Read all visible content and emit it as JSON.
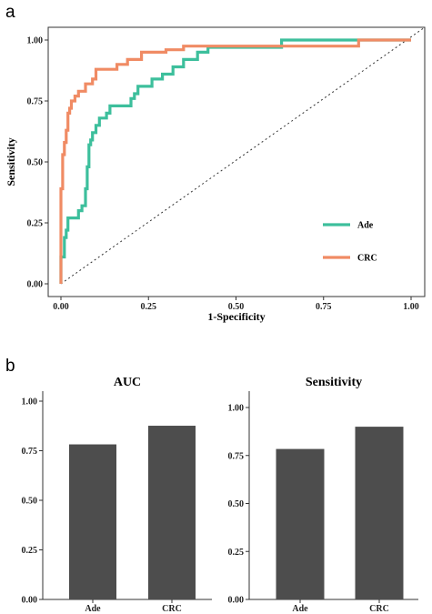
{
  "panels": {
    "a": "a",
    "b": "b"
  },
  "chart_data": [
    {
      "type": "line",
      "xlabel": "1-Specificity",
      "ylabel": "Sensitivity",
      "xlim": [
        0,
        1
      ],
      "ylim": [
        0,
        1
      ],
      "xticks": [
        "0.00",
        "0.25",
        "0.50",
        "0.75",
        "1.00"
      ],
      "yticks": [
        "0.00",
        "0.25",
        "0.50",
        "0.75",
        "1.00"
      ],
      "legend_position": "bottom-right",
      "series": [
        {
          "name": "Ade",
          "color": "#3dbf9c",
          "x": [
            0,
            0,
            0.01,
            0.01,
            0.015,
            0.015,
            0.02,
            0.02,
            0.05,
            0.05,
            0.06,
            0.06,
            0.07,
            0.07,
            0.075,
            0.075,
            0.08,
            0.08,
            0.085,
            0.085,
            0.09,
            0.09,
            0.1,
            0.1,
            0.11,
            0.11,
            0.13,
            0.13,
            0.14,
            0.14,
            0.17,
            0.17,
            0.2,
            0.2,
            0.21,
            0.21,
            0.22,
            0.22,
            0.26,
            0.26,
            0.29,
            0.29,
            0.32,
            0.32,
            0.35,
            0.35,
            0.39,
            0.39,
            0.42,
            0.42,
            0.63,
            0.63,
            1.0
          ],
          "y": [
            0,
            0.11,
            0.11,
            0.19,
            0.19,
            0.22,
            0.22,
            0.27,
            0.27,
            0.3,
            0.3,
            0.32,
            0.32,
            0.39,
            0.39,
            0.48,
            0.48,
            0.57,
            0.57,
            0.59,
            0.59,
            0.62,
            0.62,
            0.65,
            0.65,
            0.68,
            0.68,
            0.7,
            0.7,
            0.73,
            0.73,
            0.73,
            0.73,
            0.76,
            0.76,
            0.78,
            0.78,
            0.81,
            0.81,
            0.84,
            0.84,
            0.86,
            0.86,
            0.89,
            0.89,
            0.92,
            0.92,
            0.95,
            0.95,
            0.97,
            0.97,
            1.0,
            1.0
          ]
        },
        {
          "name": "CRC",
          "color": "#f08b64",
          "x": [
            0,
            0,
            0.005,
            0.005,
            0.01,
            0.01,
            0.015,
            0.015,
            0.02,
            0.02,
            0.025,
            0.025,
            0.03,
            0.03,
            0.04,
            0.04,
            0.05,
            0.05,
            0.07,
            0.07,
            0.09,
            0.09,
            0.1,
            0.1,
            0.13,
            0.13,
            0.16,
            0.16,
            0.19,
            0.19,
            0.23,
            0.23,
            0.3,
            0.3,
            0.35,
            0.35,
            0.85,
            0.85,
            1.0
          ],
          "y": [
            0,
            0.39,
            0.39,
            0.53,
            0.53,
            0.58,
            0.58,
            0.63,
            0.63,
            0.7,
            0.7,
            0.72,
            0.72,
            0.75,
            0.75,
            0.77,
            0.77,
            0.79,
            0.79,
            0.82,
            0.82,
            0.84,
            0.84,
            0.88,
            0.88,
            0.88,
            0.88,
            0.9,
            0.9,
            0.92,
            0.92,
            0.95,
            0.95,
            0.96,
            0.96,
            0.975,
            0.975,
            1.0,
            1.0
          ]
        }
      ],
      "reference_line": "diagonal dotted"
    },
    {
      "type": "bar",
      "title": "AUC",
      "categories": [
        "Ade",
        "CRC"
      ],
      "values": [
        0.782,
        0.876
      ],
      "ylim": [
        0,
        1
      ],
      "yticks": [
        "0.00",
        "0.25",
        "0.50",
        "0.75",
        "1.00"
      ],
      "bar_color": "#4d4d4d"
    },
    {
      "type": "bar",
      "title": "Sensitivity",
      "categories": [
        "Ade",
        "CRC"
      ],
      "values": [
        0.784,
        0.9
      ],
      "ylim": [
        0,
        1
      ],
      "yticks": [
        "0.00",
        "0.25",
        "0.50",
        "0.75",
        "1.00"
      ],
      "bar_color": "#4d4d4d"
    }
  ]
}
